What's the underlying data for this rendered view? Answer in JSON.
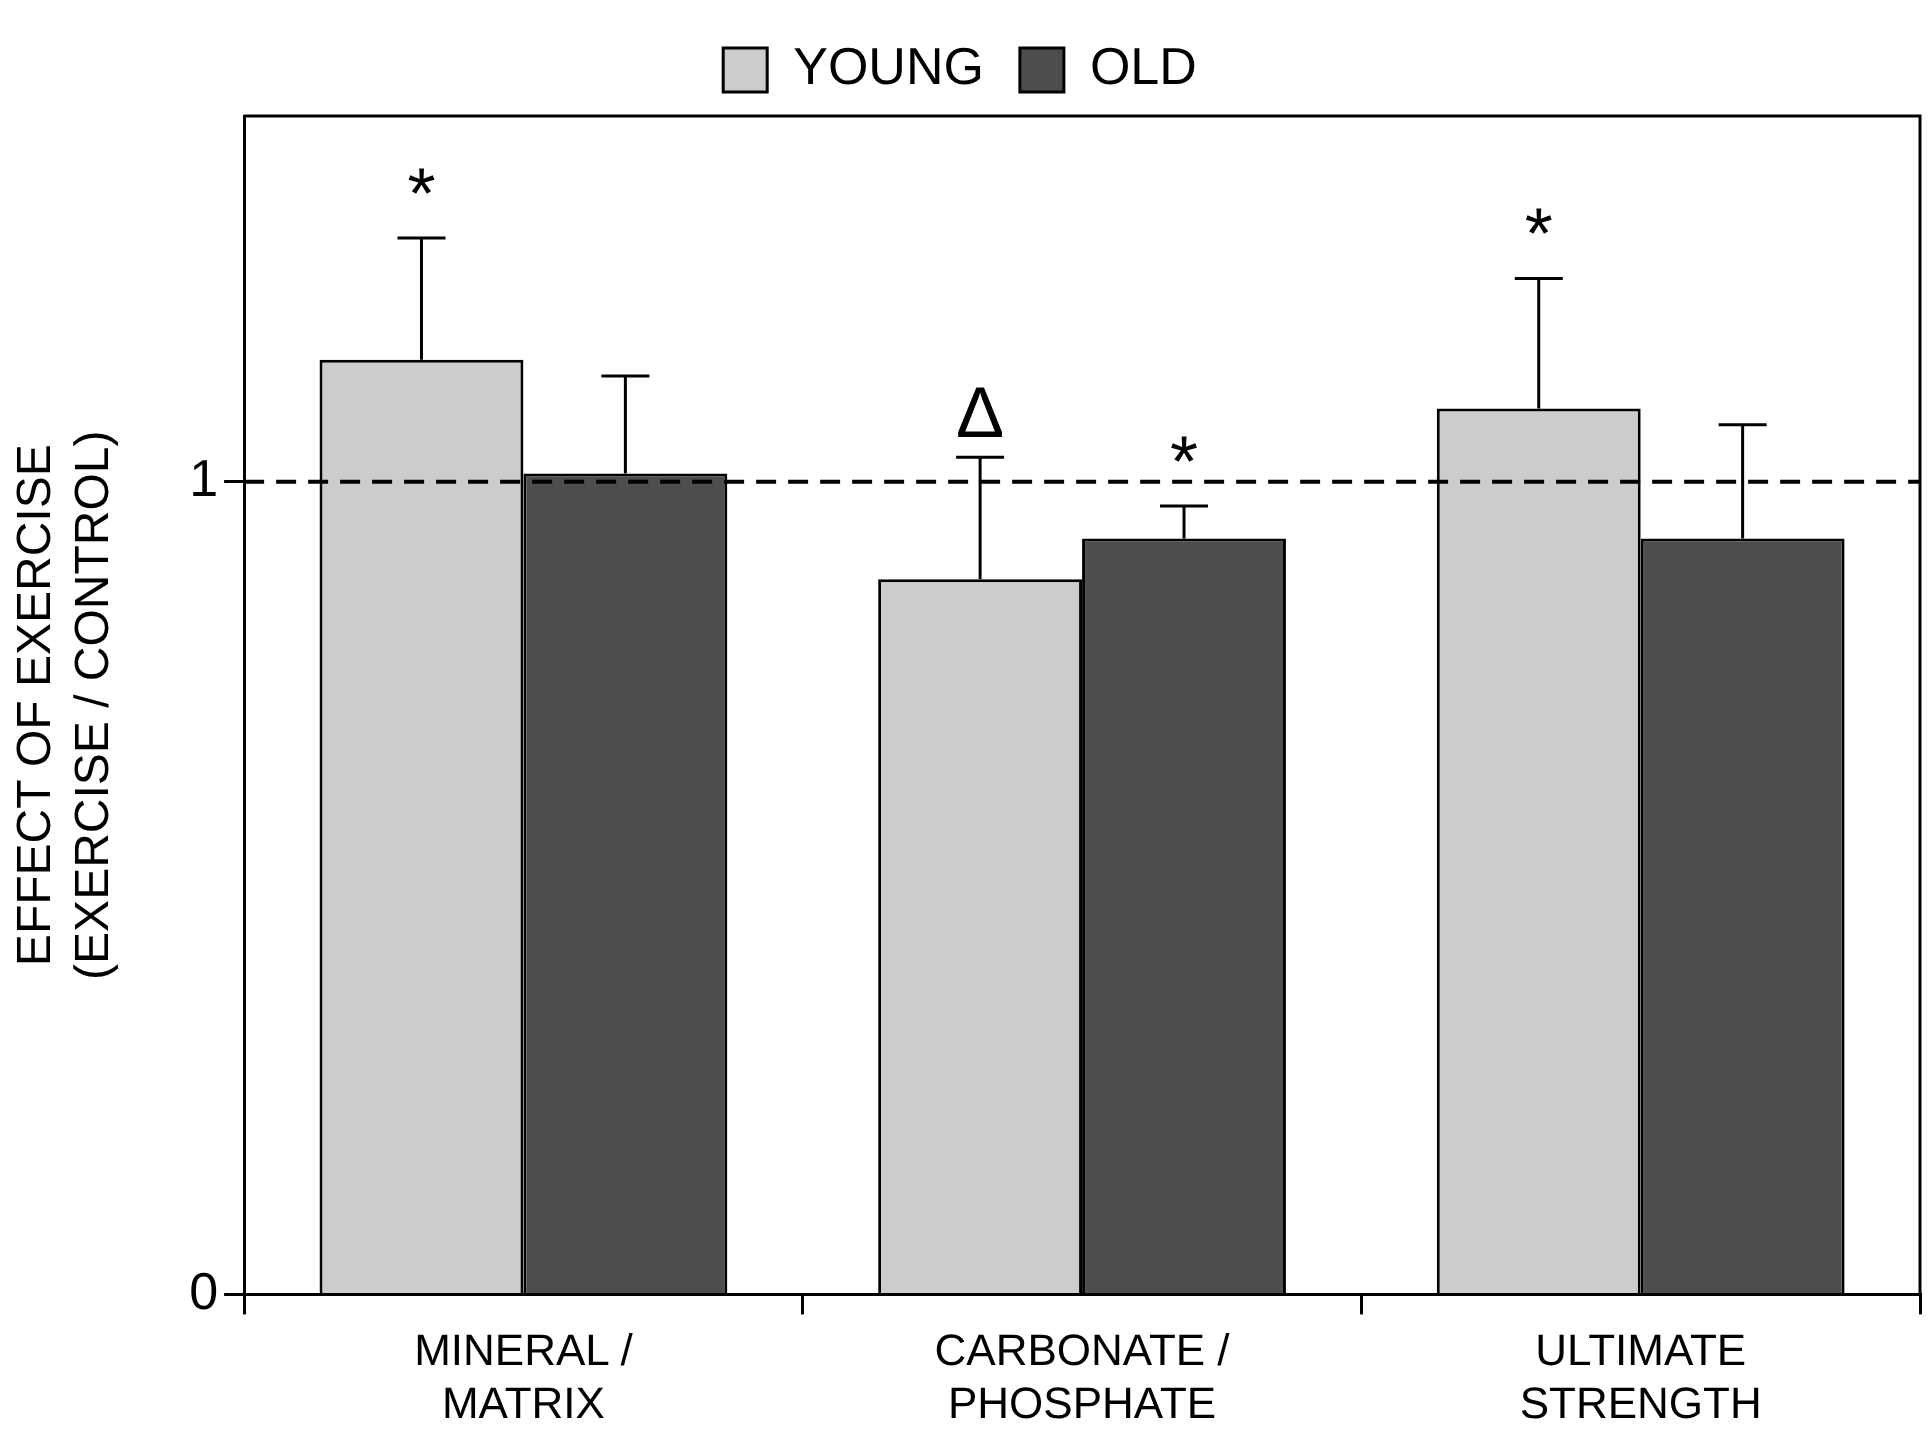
{
  "chart_data": {
    "type": "bar",
    "ylabel": "EFFECT OF EXERCISE\n(EXERCISE / CONTROL)",
    "categories": [
      "MINERAL /\nMATRIX",
      "CARBONATE /\nPHOSPHATE",
      "ULTIMATE\nSTRENGTH"
    ],
    "series": [
      {
        "name": "YOUNG",
        "color": "#cccccc",
        "values": [
          1.15,
          0.88,
          1.09
        ],
        "errors": [
          [
            1.15,
            1.3
          ],
          [
            0.88,
            1.03
          ],
          [
            1.09,
            1.25
          ]
        ],
        "value_labels": [
          "*",
          "Δ",
          "*"
        ]
      },
      {
        "name": "OLD",
        "color": "#4d4d4d",
        "values": [
          1.01,
          0.93,
          0.93
        ],
        "errors": [
          [
            1.01,
            1.13
          ],
          [
            0.93,
            0.97
          ],
          [
            0.93,
            1.07
          ]
        ],
        "value_labels": [
          null,
          "*",
          null
        ]
      }
    ],
    "ylim": [
      0,
      1.45
    ],
    "yticks": [
      0,
      1
    ],
    "ref_lines": [
      {
        "axis": "y",
        "value": 1,
        "color": "#000000",
        "line_style": "dashed"
      }
    ],
    "grid": false,
    "legend": "top"
  }
}
